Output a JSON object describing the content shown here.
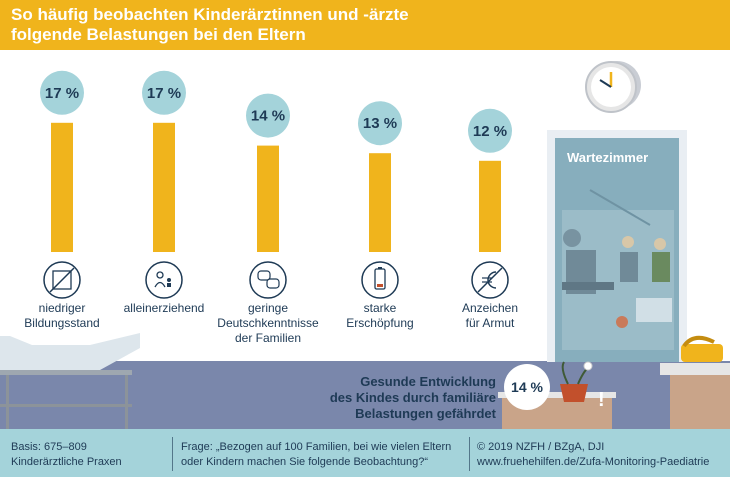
{
  "header": {
    "title_line1": "So häufig beobachten Kinderärztinnen und -ärzte",
    "title_line2": "folgende Belastungen bei den Eltern"
  },
  "chart_data": {
    "type": "bar",
    "title": "So häufig beobachten Kinderärztinnen und -ärzte folgende Belastungen bei den Eltern",
    "unit": "%",
    "ylim": [
      0,
      17
    ],
    "value_labels": [
      "17 %",
      "17 %",
      "14 %",
      "13 %",
      "12 %"
    ],
    "categories": [
      {
        "lines": [
          "niedriger",
          "Bildungsstand"
        ],
        "icon": "crossed-book-icon"
      },
      {
        "lines": [
          "alleinerziehend"
        ],
        "icon": "single-parent-icon"
      },
      {
        "lines": [
          "geringe",
          "Deutschkenntnisse",
          "der Familien"
        ],
        "icon": "speech-bubbles-icon"
      },
      {
        "lines": [
          "starke",
          "Erschöpfung"
        ],
        "icon": "low-battery-icon"
      },
      {
        "lines": [
          "Anzeichen",
          "für Armut"
        ],
        "icon": "crossed-euro-icon"
      }
    ],
    "values": [
      17,
      17,
      14,
      13,
      12
    ],
    "colors": {
      "bar": "#f0b41c",
      "badge": "#a4d3da",
      "text": "#1e3a55"
    }
  },
  "scene": {
    "door_label": "Wartezimmer",
    "child_risk_lines": [
      "Gesunde Entwicklung",
      "des Kindes durch familiäre",
      "Belastungen gefährdet"
    ],
    "child_risk_value": "14 %",
    "exclamation": "!"
  },
  "footer": {
    "basis_line1": "Basis: 675–809",
    "basis_line2": "Kinderärztliche Praxen",
    "question_line1": "Frage: „Bezogen auf 100 Familien, bei wie vielen Eltern",
    "question_line2": "oder Kindern machen Sie folgende Beobachtung?“",
    "credit_line1": "© 2019 NZFH / BZgA, DJI",
    "credit_line2": "www.fruehehilfen.de/Zufa-Monitoring-Paediatrie"
  }
}
